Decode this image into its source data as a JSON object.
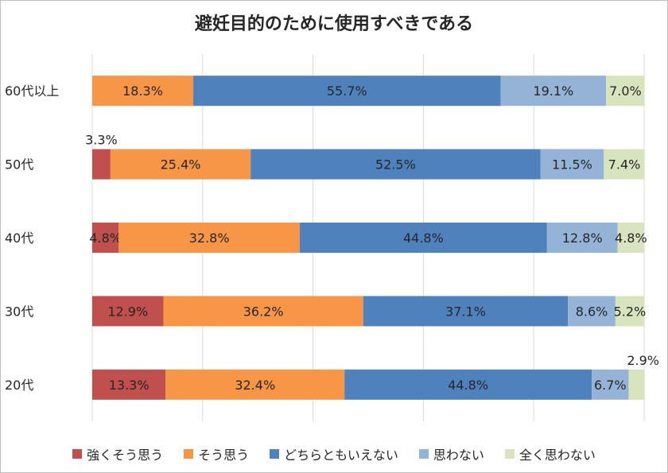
{
  "chart_data": {
    "type": "bar",
    "orientation": "horizontal",
    "stacked": true,
    "percent_stacked": true,
    "title": "避妊目的のために使用すべきである",
    "categories": [
      "60代以上",
      "50代",
      "40代",
      "30代",
      "20代"
    ],
    "series": [
      {
        "name": "強くそう思う",
        "color": "#c0504d",
        "values": [
          0,
          3.3,
          4.8,
          12.9,
          13.3
        ],
        "labels": [
          "",
          "3.3%",
          "4.8%",
          "12.9%",
          "13.3%"
        ]
      },
      {
        "name": "そう思う",
        "color": "#f79646",
        "values": [
          18.3,
          25.4,
          32.8,
          36.2,
          32.4
        ],
        "labels": [
          "18.3%",
          "25.4%",
          "32.8%",
          "36.2%",
          "32.4%"
        ]
      },
      {
        "name": "どちらともいえない",
        "color": "#4f81bd",
        "values": [
          55.7,
          52.5,
          44.8,
          37.1,
          44.8
        ],
        "labels": [
          "55.7%",
          "52.5%",
          "44.8%",
          "37.1%",
          "44.8%"
        ]
      },
      {
        "name": "思わない",
        "color": "#95b3d7",
        "values": [
          19.1,
          11.5,
          12.8,
          8.6,
          6.7
        ],
        "labels": [
          "19.1%",
          "11.5%",
          "12.8%",
          "8.6%",
          "6.7%"
        ]
      },
      {
        "name": "全く思わない",
        "color": "#d7e4bd",
        "values": [
          7.0,
          7.4,
          4.8,
          5.2,
          2.9
        ],
        "labels": [
          "7.0%",
          "7.4%",
          "4.8%",
          "5.2%",
          "2.9%"
        ]
      }
    ],
    "xlim": [
      0,
      100
    ],
    "xgrid": true,
    "legend_position": "bottom"
  }
}
